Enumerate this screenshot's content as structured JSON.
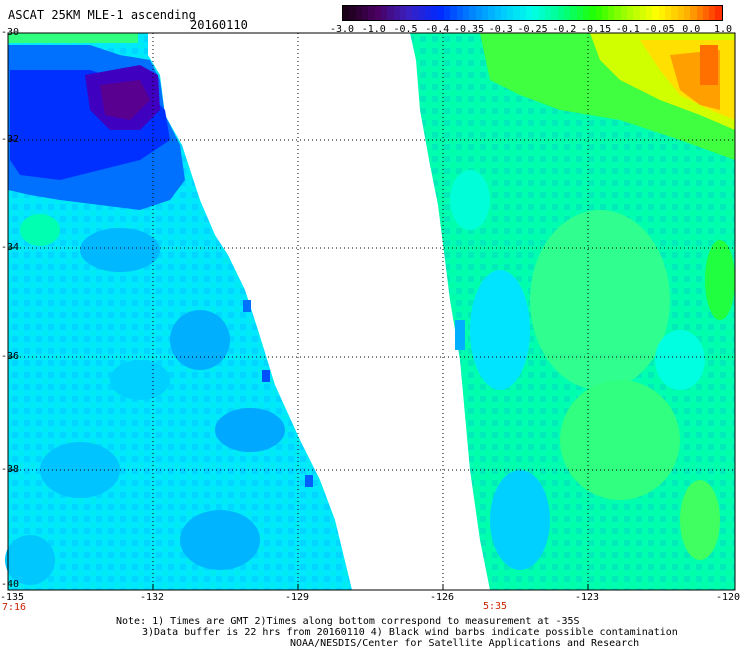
{
  "header": {
    "title": "ASCAT 25KM MLE-1 ascending",
    "date": "20160110"
  },
  "colorbar": {
    "labels": [
      "-3.0",
      "-1.0",
      "-0.5",
      "-0.4",
      "-0.35",
      "-0.3",
      "-0.25",
      "-0.2",
      "-0.15",
      "-0.1",
      "-0.05",
      "0.0",
      "1.0"
    ],
    "colors": [
      "#1a0018",
      "#4a0060",
      "#3a20c0",
      "#0028ff",
      "#0080ff",
      "#00c8ff",
      "#00ffe8",
      "#00ff80",
      "#20ff00",
      "#a0ff00",
      "#ffff00",
      "#ffb000",
      "#ff3000"
    ]
  },
  "map": {
    "lat_labels": [
      "-30",
      "-32",
      "-34",
      "-36",
      "-38",
      "-40"
    ],
    "lon_labels": [
      "-135",
      "-132",
      "-129",
      "-126",
      "-123",
      "-120"
    ],
    "lat_range": [
      -40,
      -30
    ],
    "lon_range": [
      -135,
      -120
    ],
    "swaths": [
      {
        "name": "left-swath",
        "time": "7:16"
      },
      {
        "name": "right-swath",
        "time": "5:35"
      }
    ]
  },
  "notes": {
    "line1": "Note: 1) Times are GMT 2)Times along bottom correspond to measurement at -35S",
    "line2": "3)Data buffer is 22 hrs from 20160110 4) Black wind barbs indicate possible contamination",
    "line3": "NOAA/NESDIS/Center for Satellite Applications and Research"
  }
}
